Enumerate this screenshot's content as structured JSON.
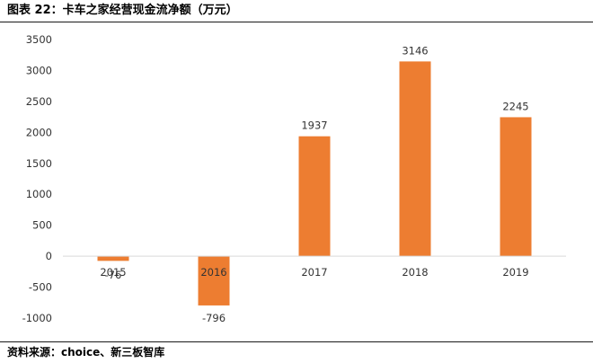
{
  "figure": {
    "title": "图表 22：卡车之家经营现金流净额（万元）",
    "source": "资料来源：choice、新三板智库"
  },
  "chart_data": {
    "type": "bar",
    "title": "",
    "xlabel": "",
    "ylabel": "",
    "categories": [
      "2015",
      "2016",
      "2017",
      "2018",
      "2019"
    ],
    "values": [
      -76,
      -796,
      1937,
      3146,
      2245
    ],
    "data_labels": [
      "-76",
      "-796",
      "1937",
      "3146",
      "2245"
    ],
    "ylim": [
      -1000,
      3500
    ],
    "yticks": [
      3500,
      3000,
      2500,
      2000,
      1500,
      1000,
      500,
      0,
      -500,
      -1000
    ],
    "grid": false,
    "legend": "none",
    "bar_color": "#ED7D31",
    "axis_color": "#D9D9D9"
  }
}
